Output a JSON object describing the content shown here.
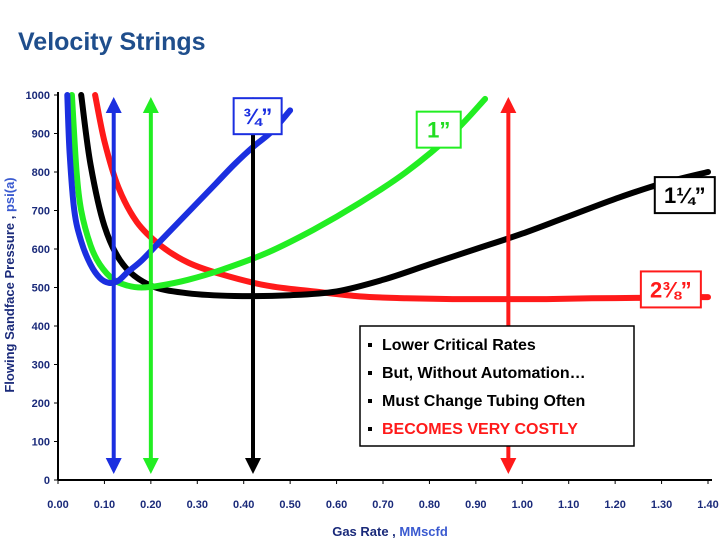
{
  "slide": {
    "title": "Velocity Strings"
  },
  "chart_data": {
    "type": "line",
    "xlabel": "Gas Rate ,",
    "xlabel_units": "MMscfd",
    "ylabel": "Flowing Sandface Pressure ,",
    "ylabel_units": "psi(a)",
    "xlim": [
      0.0,
      1.4
    ],
    "ylim": [
      0,
      1000
    ],
    "xticks": [
      "0.00",
      "0.10",
      "0.20",
      "0.30",
      "0.40",
      "0.50",
      "0.60",
      "0.70",
      "0.80",
      "0.90",
      "1.00",
      "1.10",
      "1.20",
      "1.30",
      "1.40"
    ],
    "yticks": [
      "0",
      "100",
      "200",
      "300",
      "400",
      "500",
      "600",
      "700",
      "800",
      "900",
      "1000"
    ],
    "grid": false,
    "series": [
      {
        "name": "¾”",
        "color": "#1b2fe0",
        "x": [
          0.02,
          0.025,
          0.035,
          0.05,
          0.07,
          0.09,
          0.11,
          0.13,
          0.15,
          0.18,
          0.22,
          0.26,
          0.3,
          0.34,
          0.38,
          0.42,
          0.46,
          0.5
        ],
        "y": [
          1000,
          850,
          700,
          620,
          560,
          525,
          512,
          518,
          540,
          570,
          620,
          670,
          720,
          770,
          820,
          865,
          905,
          960
        ],
        "callout": {
          "label": "¾”",
          "at_x": 0.43,
          "at_y": 945
        }
      },
      {
        "name": "1”",
        "color": "#22ee22",
        "x": [
          0.03,
          0.04,
          0.05,
          0.07,
          0.09,
          0.12,
          0.15,
          0.18,
          0.22,
          0.28,
          0.35,
          0.45,
          0.55,
          0.65,
          0.75,
          0.85,
          0.92
        ],
        "y": [
          1000,
          800,
          700,
          610,
          560,
          520,
          505,
          500,
          505,
          520,
          545,
          590,
          650,
          720,
          800,
          900,
          990
        ],
        "callout": {
          "label": "1”",
          "at_x": 0.82,
          "at_y": 910
        }
      },
      {
        "name": "1¼”",
        "color": "#000000",
        "x": [
          0.05,
          0.07,
          0.1,
          0.14,
          0.2,
          0.28,
          0.38,
          0.5,
          0.6,
          0.7,
          0.8,
          0.9,
          1.0,
          1.1,
          1.2,
          1.3,
          1.4
        ],
        "y": [
          1000,
          820,
          660,
          560,
          505,
          485,
          478,
          480,
          490,
          520,
          560,
          600,
          640,
          685,
          730,
          770,
          800
        ],
        "callout": {
          "label": "1¼”",
          "at_x": 1.35,
          "at_y": 740
        }
      },
      {
        "name": "2⅜”",
        "color": "#ff1a1a",
        "x": [
          0.08,
          0.1,
          0.13,
          0.17,
          0.22,
          0.28,
          0.35,
          0.45,
          0.55,
          0.65,
          0.75,
          0.85,
          0.95,
          1.05,
          1.15,
          1.25,
          1.35,
          1.4
        ],
        "y": [
          1000,
          880,
          760,
          670,
          610,
          565,
          535,
          505,
          490,
          477,
          472,
          470,
          470,
          470,
          472,
          473,
          475,
          475
        ],
        "callout": {
          "label": "2⅜”",
          "at_x": 1.32,
          "at_y": 495
        }
      }
    ],
    "markers": [
      {
        "name": "blue-arrow",
        "x": 0.12,
        "color": "#1b2fe0"
      },
      {
        "name": "green-arrow",
        "x": 0.2,
        "color": "#22ee22"
      },
      {
        "name": "black-arrow",
        "x": 0.42,
        "color": "#000000"
      },
      {
        "name": "red-arrow",
        "x": 0.97,
        "color": "#ff1a1a"
      }
    ],
    "annotations": {
      "bullets": [
        {
          "text": "Lower Critical Rates",
          "color": "#000000"
        },
        {
          "text": "But, Without Automation…",
          "color": "#000000"
        },
        {
          "text": "Must Change Tubing Often",
          "color": "#000000"
        },
        {
          "text": "BECOMES VERY COSTLY",
          "color": "#ff1a1a"
        }
      ]
    }
  }
}
